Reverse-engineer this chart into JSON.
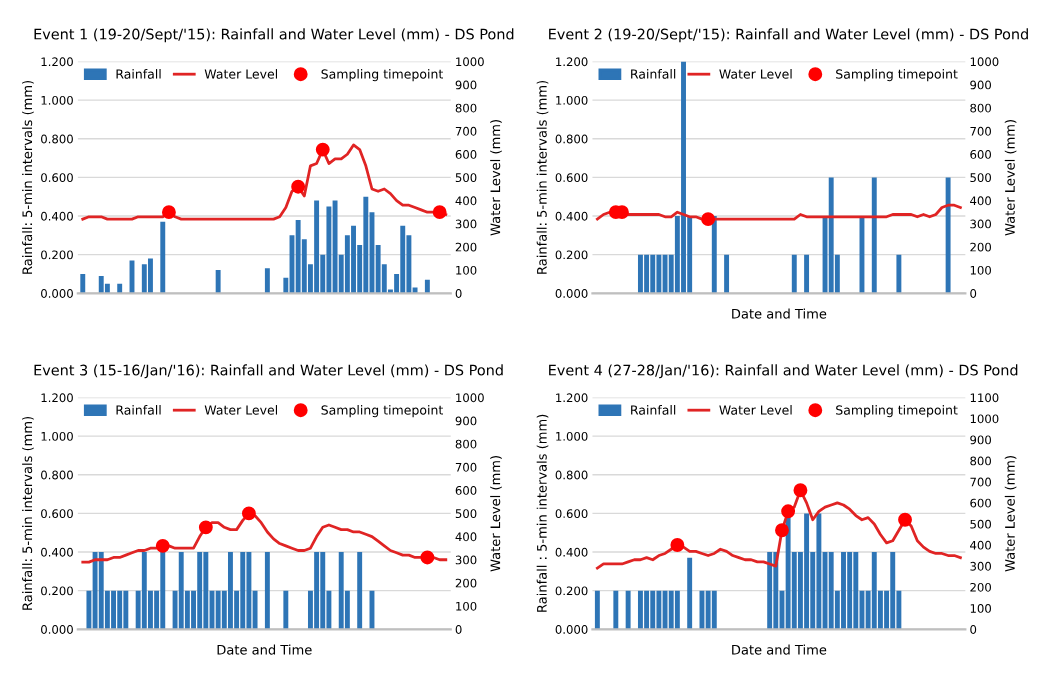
{
  "chart_data": [
    {
      "type": "bar",
      "title": "Event 1 (19-20/Sept/'15): Rainfall and Water Level (mm) - DS Pond",
      "ylabel": "Rainfall: 5-min intervals (mm)",
      "y2label": "Water Level (mm)",
      "categories": [
        null,
        null,
        null,
        null,
        null,
        null,
        null,
        null,
        null,
        null,
        null,
        null,
        null,
        null,
        null,
        null,
        null,
        null,
        null,
        null,
        null,
        null,
        null,
        null,
        null,
        null,
        null,
        null,
        null,
        null,
        null,
        null,
        null,
        null,
        null,
        null,
        null,
        null,
        null,
        null,
        null,
        null,
        null,
        null,
        null,
        null,
        null,
        null,
        null,
        null,
        null,
        null,
        null,
        null,
        null,
        null,
        null,
        null,
        null,
        null
      ],
      "ylim": [
        0,
        1.2
      ],
      "yticks": [
        {
          "value": 0,
          "label": "0.000"
        },
        {
          "value": 0.2,
          "label": "0.200"
        },
        {
          "value": 0.4,
          "label": "0.400"
        },
        {
          "value": 0.6,
          "label": "0.600"
        },
        {
          "value": 0.8,
          "label": "0.800"
        },
        {
          "value": 1.0,
          "label": "1.000"
        },
        {
          "value": 1.2,
          "label": "1.200"
        }
      ],
      "y2lim": [
        0,
        1000
      ],
      "y2ticks": [
        0,
        100,
        200,
        300,
        400,
        500,
        600,
        700,
        800,
        900,
        1000
      ],
      "grid": "y",
      "legend": "top",
      "series": [
        {
          "name": "Rainfall",
          "color": "#2e75b6",
          "values": [
            0.1,
            0,
            0,
            0.09,
            0.05,
            0,
            0.05,
            0,
            0.17,
            0,
            0.15,
            0.18,
            0,
            0.37,
            0,
            0,
            0,
            0,
            0,
            0,
            0,
            0,
            0.12,
            0,
            0,
            0,
            0,
            0,
            0,
            0,
            0.13,
            0,
            0,
            0.08,
            0.3,
            0.38,
            0.28,
            0.15,
            0.48,
            0.2,
            0.45,
            0.48,
            0.2,
            0.3,
            0.35,
            0.25,
            0.5,
            0.42,
            0.25,
            0.15,
            0.02,
            0.1,
            0.35,
            0.3,
            0.03,
            0,
            0.07,
            0,
            0,
            0
          ]
        },
        {
          "name": "Water Level",
          "type": "line",
          "axis": "y2",
          "color": "#e02424",
          "values": [
            320,
            330,
            330,
            330,
            320,
            320,
            320,
            320,
            320,
            330,
            330,
            330,
            330,
            330,
            350,
            330,
            320,
            320,
            320,
            320,
            320,
            320,
            320,
            320,
            320,
            320,
            320,
            320,
            320,
            320,
            320,
            320,
            330,
            370,
            440,
            460,
            420,
            550,
            560,
            620,
            560,
            580,
            580,
            600,
            640,
            620,
            550,
            450,
            440,
            450,
            430,
            400,
            380,
            380,
            370,
            360,
            350,
            350,
            350,
            340
          ]
        },
        {
          "name": "Sampling timepoint",
          "type": "scatter",
          "axis": "y2",
          "color": "#ff0000",
          "marker": "circle",
          "values": [
            null,
            null,
            null,
            null,
            null,
            null,
            null,
            null,
            null,
            null,
            null,
            null,
            null,
            null,
            350,
            null,
            null,
            null,
            null,
            null,
            null,
            null,
            null,
            null,
            null,
            null,
            null,
            null,
            null,
            null,
            null,
            null,
            null,
            null,
            null,
            460,
            null,
            null,
            null,
            620,
            null,
            null,
            null,
            null,
            null,
            null,
            null,
            null,
            null,
            null,
            null,
            null,
            null,
            null,
            null,
            null,
            null,
            null,
            350,
            null
          ]
        }
      ]
    },
    {
      "type": "bar",
      "title": "Event 2 (19-20/Sept/'15): Rainfall and Water Level (mm) - DS Pond",
      "xlabel": "Date and Time",
      "ylabel": "Rainfall: 5-min intervals (mm)",
      "y2label": "Water Level (mm)",
      "categories": [
        null,
        null,
        null,
        null,
        null,
        null,
        null,
        null,
        null,
        null,
        null,
        null,
        null,
        null,
        null,
        null,
        null,
        null,
        null,
        null,
        null,
        null,
        null,
        null,
        null,
        null,
        null,
        null,
        null,
        null,
        null,
        null,
        null,
        null,
        null,
        null,
        null,
        null,
        null,
        null,
        null,
        null,
        null,
        null,
        null,
        null,
        null,
        null,
        null,
        null,
        null,
        null,
        null,
        null,
        null,
        null,
        null,
        null,
        null,
        null
      ],
      "ylim": [
        0,
        1.2
      ],
      "yticks": [
        {
          "value": 0,
          "label": "0.000"
        },
        {
          "value": 0.2,
          "label": "0.200"
        },
        {
          "value": 0.4,
          "label": "0.400"
        },
        {
          "value": 0.6,
          "label": "0.600"
        },
        {
          "value": 0.8,
          "label": "0.800"
        },
        {
          "value": 1.0,
          "label": "1.000"
        },
        {
          "value": 1.2,
          "label": "1.200"
        }
      ],
      "y2lim": [
        0,
        1000
      ],
      "y2ticks": [
        0,
        100,
        200,
        300,
        400,
        500,
        600,
        700,
        800,
        900,
        1000
      ],
      "grid": "y",
      "legend": "top",
      "series": [
        {
          "name": "Rainfall",
          "color": "#2e75b6",
          "values": [
            0,
            0,
            0,
            0,
            0,
            0,
            0,
            0.2,
            0.2,
            0.2,
            0.2,
            0.2,
            0.2,
            0.4,
            1.2,
            0.4,
            0,
            0,
            0,
            0.4,
            0,
            0.2,
            0,
            0,
            0,
            0,
            0,
            0,
            0,
            0,
            0,
            0,
            0.2,
            0,
            0.2,
            0,
            0,
            0.4,
            0.6,
            0.2,
            0,
            0,
            0,
            0.4,
            0,
            0.6,
            0,
            0,
            0,
            0.2,
            0,
            0,
            0,
            0,
            0,
            0,
            0,
            0.6,
            0,
            0
          ]
        },
        {
          "name": "Water Level",
          "type": "line",
          "axis": "y2",
          "color": "#e02424",
          "values": [
            320,
            340,
            350,
            350,
            350,
            340,
            340,
            340,
            340,
            340,
            340,
            330,
            330,
            350,
            340,
            330,
            330,
            320,
            320,
            320,
            320,
            320,
            320,
            320,
            320,
            320,
            320,
            320,
            320,
            320,
            320,
            320,
            320,
            340,
            330,
            330,
            330,
            330,
            330,
            330,
            330,
            330,
            330,
            330,
            330,
            330,
            330,
            330,
            340,
            340,
            340,
            340,
            330,
            340,
            330,
            340,
            370,
            380,
            380,
            370
          ]
        },
        {
          "name": "Sampling timepoint",
          "type": "scatter",
          "axis": "y2",
          "color": "#ff0000",
          "marker": "circle",
          "values": [
            null,
            null,
            null,
            350,
            350,
            null,
            null,
            null,
            null,
            null,
            null,
            null,
            null,
            null,
            null,
            null,
            null,
            null,
            320,
            null,
            null,
            null,
            null,
            null,
            null,
            null,
            null,
            null,
            null,
            null,
            null,
            null,
            null,
            null,
            null,
            null,
            null,
            null,
            null,
            null,
            null,
            null,
            null,
            null,
            null,
            null,
            null,
            null,
            null,
            null,
            null,
            null,
            null,
            null,
            null,
            null,
            null,
            null,
            null,
            null
          ]
        }
      ]
    },
    {
      "type": "bar",
      "title": "Event 3 (15-16/Jan/'16): Rainfall and Water Level (mm) - DS Pond",
      "xlabel": "Date and Time",
      "ylabel": "Rainfall: 5-min intervals (mm)",
      "y2label": "Water Level (mm)",
      "categories": [
        null,
        null,
        null,
        null,
        null,
        null,
        null,
        null,
        null,
        null,
        null,
        null,
        null,
        null,
        null,
        null,
        null,
        null,
        null,
        null,
        null,
        null,
        null,
        null,
        null,
        null,
        null,
        null,
        null,
        null,
        null,
        null,
        null,
        null,
        null,
        null,
        null,
        null,
        null,
        null,
        null,
        null,
        null,
        null,
        null,
        null,
        null,
        null,
        null,
        null,
        null,
        null,
        null,
        null,
        null,
        null,
        null,
        null,
        null,
        null
      ],
      "ylim": [
        0,
        1.2
      ],
      "yticks": [
        {
          "value": 0,
          "label": "0.000"
        },
        {
          "value": 0.2,
          "label": "0.200"
        },
        {
          "value": 0.4,
          "label": "0.400"
        },
        {
          "value": 0.6,
          "label": "0.600"
        },
        {
          "value": 0.8,
          "label": "0.800"
        },
        {
          "value": 1.0,
          "label": "1.000"
        },
        {
          "value": 1.2,
          "label": "1.200"
        }
      ],
      "y2lim": [
        0,
        1000
      ],
      "y2ticks": [
        0,
        100,
        200,
        300,
        400,
        500,
        600,
        700,
        800,
        900,
        1000
      ],
      "grid": "y",
      "legend": "top",
      "series": [
        {
          "name": "Rainfall",
          "color": "#2e75b6",
          "values": [
            0,
            0.2,
            0.4,
            0.4,
            0.2,
            0.2,
            0.2,
            0.2,
            0,
            0.2,
            0.4,
            0.2,
            0.2,
            0.4,
            0,
            0.2,
            0.4,
            0.2,
            0.2,
            0.4,
            0.4,
            0.2,
            0.2,
            0.2,
            0.4,
            0.2,
            0.4,
            0.4,
            0.2,
            0,
            0.4,
            0,
            0,
            0.2,
            0,
            0,
            0,
            0.2,
            0.4,
            0.4,
            0.2,
            0,
            0.4,
            0.2,
            0,
            0.4,
            0,
            0.2,
            0,
            0,
            0,
            0,
            0,
            0,
            0,
            0,
            0,
            0,
            0,
            0
          ]
        },
        {
          "name": "Water Level",
          "type": "line",
          "axis": "y2",
          "color": "#e02424",
          "values": [
            290,
            290,
            300,
            300,
            300,
            310,
            310,
            320,
            330,
            340,
            340,
            350,
            350,
            360,
            360,
            350,
            350,
            350,
            350,
            400,
            440,
            460,
            460,
            440,
            430,
            430,
            470,
            500,
            490,
            460,
            420,
            390,
            370,
            360,
            350,
            340,
            340,
            350,
            400,
            440,
            450,
            440,
            430,
            430,
            420,
            420,
            410,
            400,
            380,
            360,
            340,
            330,
            320,
            320,
            310,
            310,
            310,
            310,
            300,
            300
          ]
        },
        {
          "name": "Sampling timepoint",
          "type": "scatter",
          "axis": "y2",
          "color": "#ff0000",
          "marker": "circle",
          "values": [
            null,
            null,
            null,
            null,
            null,
            null,
            null,
            null,
            null,
            null,
            null,
            null,
            null,
            360,
            null,
            null,
            null,
            null,
            null,
            null,
            440,
            null,
            null,
            null,
            null,
            null,
            null,
            500,
            null,
            null,
            null,
            null,
            null,
            null,
            null,
            null,
            null,
            null,
            null,
            null,
            null,
            null,
            null,
            null,
            null,
            null,
            null,
            null,
            null,
            null,
            null,
            null,
            null,
            null,
            null,
            null,
            310,
            null,
            null,
            null
          ]
        }
      ]
    },
    {
      "type": "bar",
      "title": "Event 4 (27-28/Jan/'16): Rainfall and Water Level (mm) - DS Pond",
      "xlabel": "Date and Time",
      "ylabel": "Rainfall : 5-min intervals (mm)",
      "y2label": "Water Level (mm)",
      "categories": [
        null,
        null,
        null,
        null,
        null,
        null,
        null,
        null,
        null,
        null,
        null,
        null,
        null,
        null,
        null,
        null,
        null,
        null,
        null,
        null,
        null,
        null,
        null,
        null,
        null,
        null,
        null,
        null,
        null,
        null,
        null,
        null,
        null,
        null,
        null,
        null,
        null,
        null,
        null,
        null,
        null,
        null,
        null,
        null,
        null,
        null,
        null,
        null,
        null,
        null,
        null,
        null,
        null,
        null,
        null,
        null,
        null,
        null,
        null,
        null
      ],
      "ylim": [
        0,
        1.2
      ],
      "yticks": [
        {
          "value": 0,
          "label": "0.000"
        },
        {
          "value": 0.2,
          "label": "0.200"
        },
        {
          "value": 0.4,
          "label": "0.400"
        },
        {
          "value": 0.6,
          "label": "0.600"
        },
        {
          "value": 0.8,
          "label": "0.800"
        },
        {
          "value": 1.0,
          "label": "1.000"
        },
        {
          "value": 1.2,
          "label": "1.200"
        }
      ],
      "y2lim": [
        0,
        1100
      ],
      "y2ticks": [
        0,
        100,
        200,
        300,
        400,
        500,
        600,
        700,
        800,
        900,
        1000,
        1100
      ],
      "grid": "y",
      "legend": "top",
      "series": [
        {
          "name": "Rainfall",
          "color": "#2e75b6",
          "values": [
            0.2,
            0,
            0,
            0.2,
            0,
            0.2,
            0,
            0.2,
            0.2,
            0.2,
            0.2,
            0.2,
            0.2,
            0.2,
            0,
            0.37,
            0,
            0.2,
            0.2,
            0.2,
            0,
            0,
            0,
            0,
            0,
            0,
            0,
            0,
            0.4,
            0.4,
            0.2,
            0.6,
            0.4,
            0.4,
            0.6,
            0.4,
            0.6,
            0.4,
            0.4,
            0.2,
            0.4,
            0.4,
            0.4,
            0.2,
            0.2,
            0.4,
            0.2,
            0.2,
            0.4,
            0.2,
            0,
            0,
            0,
            0,
            0,
            0,
            0,
            0,
            0,
            0
          ]
        },
        {
          "name": "Water Level",
          "type": "line",
          "axis": "y2",
          "color": "#e02424",
          "values": [
            290,
            310,
            310,
            310,
            310,
            320,
            330,
            330,
            340,
            330,
            350,
            360,
            380,
            400,
            390,
            370,
            370,
            360,
            350,
            360,
            380,
            370,
            350,
            340,
            330,
            330,
            320,
            320,
            310,
            300,
            470,
            560,
            580,
            660,
            600,
            520,
            560,
            580,
            590,
            600,
            590,
            570,
            540,
            520,
            530,
            500,
            450,
            410,
            420,
            470,
            520,
            490,
            420,
            390,
            370,
            360,
            360,
            350,
            350,
            340
          ]
        },
        {
          "name": "Sampling timepoint",
          "type": "scatter",
          "axis": "y2",
          "color": "#ff0000",
          "marker": "circle",
          "values": [
            null,
            null,
            null,
            null,
            null,
            null,
            null,
            null,
            null,
            null,
            null,
            null,
            null,
            400,
            null,
            null,
            null,
            null,
            null,
            null,
            null,
            null,
            null,
            null,
            null,
            null,
            null,
            null,
            null,
            null,
            470,
            560,
            null,
            660,
            null,
            null,
            null,
            null,
            null,
            null,
            null,
            null,
            null,
            null,
            null,
            null,
            null,
            null,
            null,
            null,
            520,
            null,
            null,
            null,
            null,
            null,
            null,
            null,
            null,
            null
          ]
        }
      ]
    }
  ]
}
